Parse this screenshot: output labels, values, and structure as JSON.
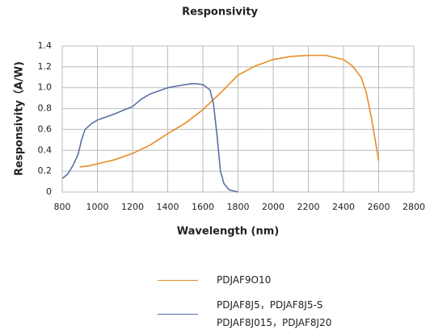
{
  "chart_data": {
    "type": "line",
    "title": "Responsivity",
    "x_label": "Wavelength (nm)",
    "y_label": "Responsivity（A/W)",
    "xlim": [
      800,
      2800
    ],
    "xticks": [
      800,
      1000,
      1200,
      1400,
      1600,
      1800,
      2000,
      2200,
      2400,
      2600,
      2800
    ],
    "ylim": [
      0,
      1.4
    ],
    "yticks": [
      0,
      0.2,
      0.4,
      0.6,
      0.8,
      {
        "value": 1.0,
        "label": "1.0"
      },
      1.2,
      1.4
    ],
    "grid": true,
    "series": [
      {
        "name": "PDJAF9O10",
        "color": "#e98b25",
        "x": [
          900,
          950,
          1000,
          1050,
          1100,
          1150,
          1200,
          1300,
          1400,
          1500,
          1600,
          1700,
          1800,
          1900,
          2000,
          2100,
          2200,
          2300,
          2400,
          2450,
          2500,
          2530,
          2560,
          2600
        ],
        "values": [
          0.24,
          0.25,
          0.27,
          0.29,
          0.31,
          0.34,
          0.37,
          0.45,
          0.56,
          0.66,
          0.79,
          0.95,
          1.12,
          1.21,
          1.27,
          1.3,
          1.31,
          1.31,
          1.27,
          1.21,
          1.1,
          0.95,
          0.7,
          0.3
        ]
      },
      {
        "name": "PDJAF8J5，PDJAF8J5-S\nPDJAF8J015，PDJAF8J20",
        "color": "#5b6fa8",
        "x": [
          800,
          830,
          860,
          890,
          910,
          930,
          970,
          1000,
          1100,
          1200,
          1250,
          1300,
          1400,
          1500,
          1550,
          1600,
          1640,
          1660,
          1680,
          1700,
          1720,
          1750,
          1800
        ],
        "values": [
          0.13,
          0.17,
          0.25,
          0.36,
          0.5,
          0.6,
          0.66,
          0.69,
          0.75,
          0.82,
          0.89,
          0.94,
          1.0,
          1.03,
          1.04,
          1.03,
          0.98,
          0.85,
          0.55,
          0.2,
          0.08,
          0.02,
          0.0
        ]
      }
    ]
  }
}
